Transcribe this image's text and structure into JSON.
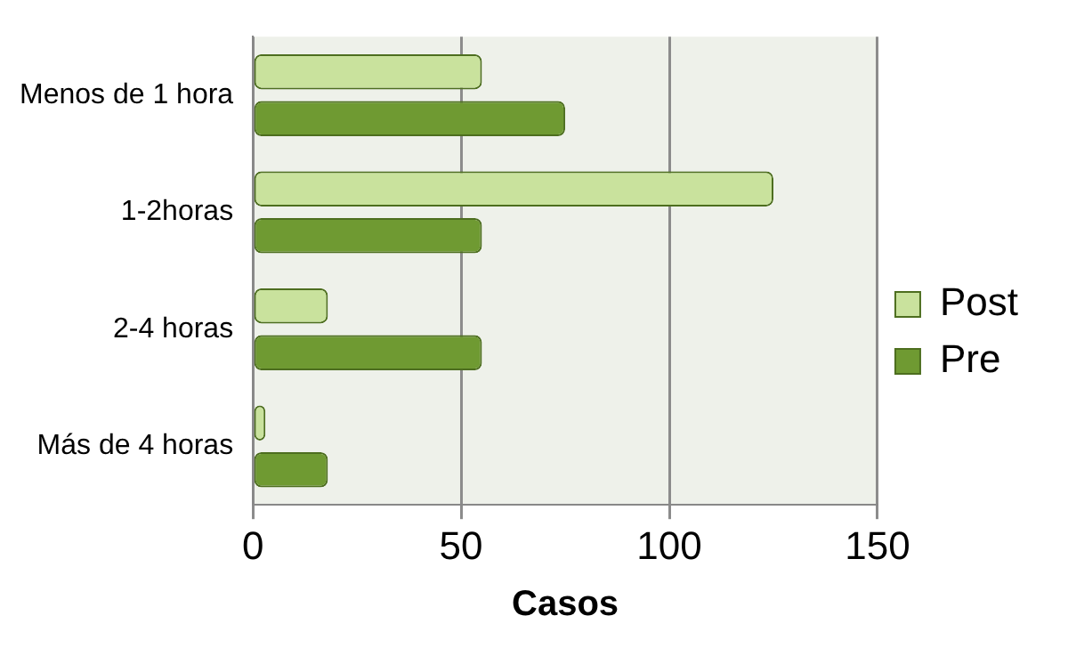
{
  "chart_data": {
    "type": "bar",
    "orientation": "horizontal",
    "xlabel": "Casos",
    "categories": [
      "Menos de 1 hora",
      "1-2horas",
      "2-4 horas",
      "Más de 4 horas"
    ],
    "series": [
      {
        "name": "Post",
        "color": "#c9e29d",
        "values": [
          55,
          125,
          18,
          3
        ]
      },
      {
        "name": "Pre",
        "color": "#6f9a32",
        "values": [
          75,
          55,
          55,
          18
        ]
      }
    ],
    "xlim": [
      0,
      150
    ],
    "xticks": [
      0,
      50,
      100,
      150
    ],
    "grid": "x",
    "legend": "right"
  }
}
